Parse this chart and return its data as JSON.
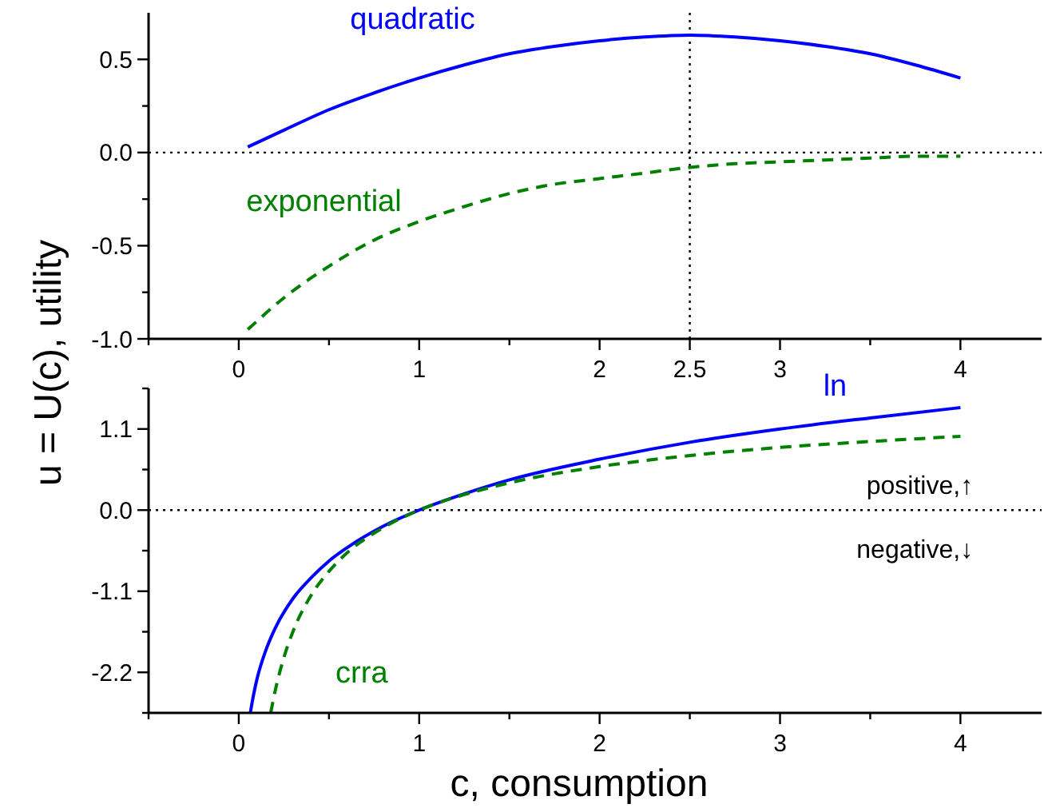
{
  "chart_data": [
    {
      "type": "line",
      "ylabel": "u = U(c), utility",
      "xlim": [
        -0.5,
        4.45
      ],
      "ylim": [
        -1,
        0.75
      ],
      "xticks": [
        {
          "value": -0.5,
          "label": null
        },
        0,
        {
          "value": 0.5,
          "label": null
        },
        1,
        {
          "value": 1.5,
          "label": null
        },
        2,
        2.5,
        3,
        {
          "value": 3.5,
          "label": null
        },
        4
      ],
      "yticks": [
        {
          "value": -1,
          "label": "-1.0"
        },
        {
          "value": -0.75,
          "label": null
        },
        {
          "value": -0.5,
          "label": "-0.5"
        },
        {
          "value": -0.25,
          "label": null
        },
        {
          "value": 0,
          "label": "0.0"
        },
        {
          "value": 0.25,
          "label": null
        },
        0.5
      ],
      "x": [
        0.05,
        0.25,
        0.5,
        0.75,
        1,
        1.25,
        1.5,
        1.75,
        2,
        2.25,
        2.5,
        2.75,
        3,
        3.25,
        3.5,
        3.75,
        4
      ],
      "series": [
        {
          "name": "quadratic",
          "color": "#0000ff",
          "line_style": "solid",
          "values": [
            0.03,
            0.12,
            0.23,
            0.32,
            0.4,
            0.47,
            0.53,
            0.57,
            0.6,
            0.62,
            0.63,
            0.62,
            0.6,
            0.57,
            0.53,
            0.47,
            0.4
          ]
        },
        {
          "name": "exponential",
          "color": "#008000",
          "line_style": "dashed",
          "values": [
            -0.95,
            -0.78,
            -0.61,
            -0.47,
            -0.37,
            -0.29,
            -0.22,
            -0.17,
            -0.14,
            -0.11,
            -0.08,
            -0.06,
            -0.05,
            -0.04,
            -0.03,
            -0.02,
            -0.02
          ]
        }
      ],
      "ref_lines": [
        {
          "axis": "x",
          "value": 2.5,
          "line_style": "dotted",
          "color": "#000000"
        },
        {
          "axis": "y",
          "value": 0,
          "line_style": "dotted",
          "color": "#000000"
        }
      ],
      "grid": false
    },
    {
      "type": "line",
      "xlabel": "c, consumption",
      "xlim": [
        -0.5,
        4.45
      ],
      "ylim": [
        -2.75,
        1.65
      ],
      "xticks": [
        {
          "value": -0.5,
          "label": null
        },
        0,
        {
          "value": 0.5,
          "label": null
        },
        1,
        {
          "value": 1.5,
          "label": null
        },
        2,
        {
          "value": 2.5,
          "label": null
        },
        3,
        {
          "value": 3.5,
          "label": null
        },
        4
      ],
      "yticks": [
        {
          "value": -2.75,
          "label": null
        },
        -2.2,
        {
          "value": -1.65,
          "label": null
        },
        -1.1,
        {
          "value": -0.55,
          "label": null
        },
        {
          "value": 0,
          "label": "0.0"
        },
        {
          "value": 0.55,
          "label": null
        },
        1.1,
        {
          "value": 1.65,
          "label": null
        }
      ],
      "series": [
        {
          "name": "ln",
          "color": "#0000ff",
          "line_style": "solid",
          "x": [
            0.064,
            0.08,
            0.1,
            0.15,
            0.2,
            0.3,
            0.4,
            0.5,
            0.6,
            0.8,
            1,
            1.25,
            1.5,
            2,
            2.5,
            3,
            3.5,
            4
          ],
          "values": [
            -2.75,
            -2.53,
            -2.3,
            -1.9,
            -1.61,
            -1.2,
            -0.92,
            -0.69,
            -0.51,
            -0.22,
            0,
            0.22,
            0.41,
            0.69,
            0.92,
            1.1,
            1.25,
            1.39
          ]
        },
        {
          "name": "crra",
          "color": "#008000",
          "line_style": "dashed",
          "x": [
            0.177,
            0.2,
            0.25,
            0.3,
            0.4,
            0.5,
            0.6,
            0.8,
            1,
            1.25,
            1.5,
            2,
            2.5,
            3,
            3.5,
            4
          ],
          "values": [
            -2.75,
            -2.47,
            -2,
            -1.65,
            -1.16,
            -0.83,
            -0.58,
            -0.24,
            0,
            0.21,
            0.37,
            0.59,
            0.74,
            0.85,
            0.93,
            1.0
          ]
        }
      ],
      "ref_lines": [
        {
          "axis": "y",
          "value": 0,
          "line_style": "dotted",
          "color": "#000000"
        }
      ],
      "annotations": [
        "positive,↑",
        "negative,↓"
      ],
      "grid": false
    }
  ]
}
